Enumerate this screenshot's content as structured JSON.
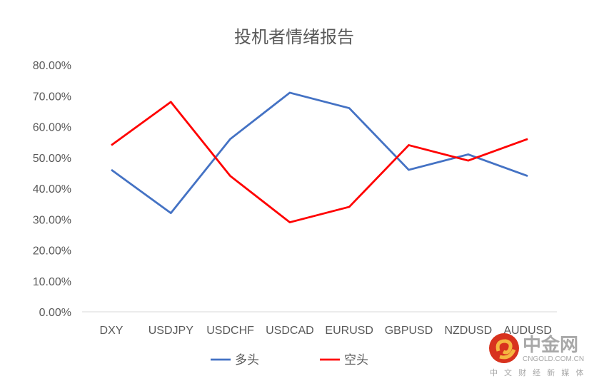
{
  "chart_data": {
    "type": "line",
    "title": "投机者情绪报告",
    "categories": [
      "DXY",
      "USDJPY",
      "USDCHF",
      "USDCAD",
      "EURUSD",
      "GBPUSD",
      "NZDUSD",
      "AUDUSD"
    ],
    "series": [
      {
        "name": "多头",
        "color": "#4472C4",
        "values": [
          46,
          32,
          56,
          71,
          66,
          46,
          51,
          44
        ]
      },
      {
        "name": "空头",
        "color": "#FF0000",
        "values": [
          54,
          68,
          44,
          29,
          34,
          54,
          49,
          56
        ]
      }
    ],
    "ylim": [
      0,
      80
    ],
    "yticks": [
      "0.00%",
      "10.00%",
      "20.00%",
      "30.00%",
      "40.00%",
      "50.00%",
      "60.00%",
      "70.00%",
      "80.00%"
    ],
    "legend": "bottom",
    "grid": false
  },
  "watermark": {
    "name": "中金网",
    "domain": "CNGOLD.COM.CN",
    "tagline": "中 文 财 经 新 媒 体"
  }
}
